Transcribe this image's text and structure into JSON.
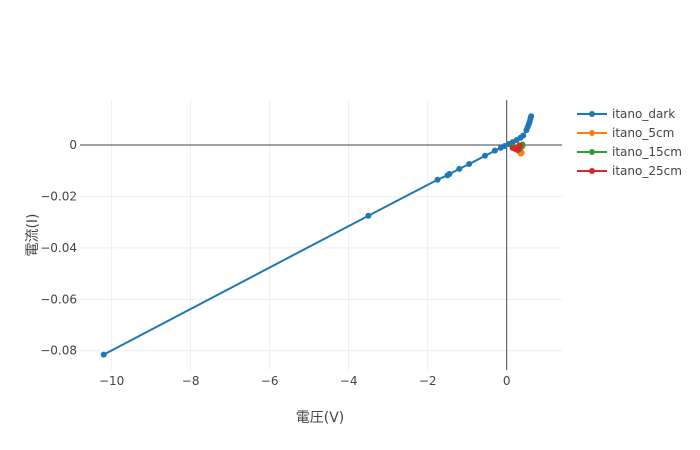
{
  "chart_data": {
    "type": "line",
    "title": "",
    "xlabel": "電圧(V)",
    "ylabel": "電流(I)",
    "xlim": [
      -10.8,
      1.4
    ],
    "ylim": [
      -0.0875,
      0.0175
    ],
    "xticks": [
      -10,
      -8,
      -6,
      -4,
      -2,
      0
    ],
    "xtick_labels": [
      "−10",
      "−8",
      "−6",
      "−4",
      "−2",
      "0"
    ],
    "yticks": [
      0,
      -0.02,
      -0.04,
      -0.06,
      -0.08
    ],
    "ytick_labels": [
      "0",
      "−0.02",
      "−0.04",
      "−0.06",
      "−0.08"
    ],
    "grid": true,
    "legend_position": "top-right",
    "series": [
      {
        "name": "itano_dark",
        "color": "#1f77b4",
        "x": [
          -10.2,
          -3.5,
          -1.75,
          -1.5,
          -1.45,
          -1.2,
          -0.95,
          -0.55,
          -0.3,
          -0.15,
          -0.05,
          0.05,
          0.15,
          0.25,
          0.35,
          0.42,
          0.5,
          0.53,
          0.56,
          0.58,
          0.6,
          0.62
        ],
        "y": [
          -0.0815,
          -0.0275,
          -0.0135,
          -0.0118,
          -0.0113,
          -0.0093,
          -0.0074,
          -0.0042,
          -0.0022,
          -0.0011,
          -0.0004,
          0.0004,
          0.0011,
          0.0019,
          0.0028,
          0.0037,
          0.0058,
          0.007,
          0.0081,
          0.009,
          0.0102,
          0.0112
        ]
      },
      {
        "name": "itano_5cm",
        "color": "#ff7f0e",
        "x": [
          0.2,
          0.25,
          0.3,
          0.33,
          0.36,
          0.38,
          0.4,
          0.35,
          0.32
        ],
        "y": [
          -0.0014,
          -0.0018,
          -0.0022,
          -0.0027,
          -0.0033,
          -0.003,
          -0.0005,
          -0.0002,
          -0.0001
        ]
      },
      {
        "name": "itano_15cm",
        "color": "#2ca02c",
        "x": [
          0.15,
          0.2,
          0.25,
          0.3,
          0.33,
          0.36,
          0.38,
          0.4
        ],
        "y": [
          -0.0008,
          -0.0011,
          -0.0014,
          -0.0018,
          -0.0015,
          -0.0009,
          -0.0004,
          0.0002
        ]
      },
      {
        "name": "itano_25cm",
        "color": "#d62728",
        "x": [
          0.15,
          0.2,
          0.25,
          0.28,
          0.3,
          0.33
        ],
        "y": [
          -0.0011,
          -0.0014,
          -0.0016,
          -0.0019,
          -0.0012,
          -0.0002
        ]
      }
    ]
  }
}
